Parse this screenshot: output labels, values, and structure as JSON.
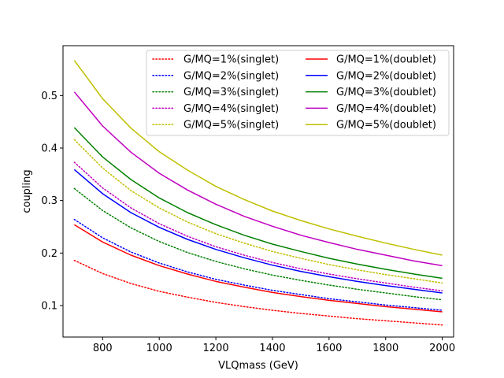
{
  "chart_data": {
    "type": "line",
    "xlabel": "VLQmass (GeV)",
    "ylabel": "coupling",
    "xlim": [
      660,
      2040
    ],
    "ylim": [
      0.04,
      0.595
    ],
    "xticks": [
      800,
      1000,
      1200,
      1400,
      1600,
      1800,
      2000
    ],
    "yticks": [
      0.1,
      0.2,
      0.3,
      0.4,
      0.5
    ],
    "grid": false,
    "legend_placement": "top-right",
    "legend_columns": 2,
    "x": [
      700,
      800,
      900,
      1000,
      1100,
      1200,
      1300,
      1400,
      1500,
      1600,
      1700,
      1800,
      1900,
      2000
    ],
    "series": [
      {
        "name": "G/MQ=1%(singlet)",
        "color": "#ff0000",
        "style": "dotted",
        "values": [
          0.186,
          0.161,
          0.142,
          0.127,
          0.116,
          0.106,
          0.098,
          0.091,
          0.085,
          0.08,
          0.075,
          0.071,
          0.067,
          0.063
        ]
      },
      {
        "name": "G/MQ=2%(singlet)",
        "color": "#0000ff",
        "style": "dotted",
        "values": [
          0.264,
          0.229,
          0.202,
          0.181,
          0.164,
          0.15,
          0.139,
          0.129,
          0.121,
          0.113,
          0.107,
          0.101,
          0.096,
          0.091
        ]
      },
      {
        "name": "G/MQ=3%(singlet)",
        "color": "#008000",
        "style": "dotted",
        "values": [
          0.323,
          0.281,
          0.248,
          0.222,
          0.201,
          0.184,
          0.17,
          0.158,
          0.148,
          0.139,
          0.131,
          0.124,
          0.117,
          0.111
        ]
      },
      {
        "name": "G/MQ=4%(singlet)",
        "color": "#bf00bf",
        "style": "dotted",
        "values": [
          0.373,
          0.324,
          0.286,
          0.256,
          0.232,
          0.212,
          0.196,
          0.182,
          0.17,
          0.16,
          0.151,
          0.143,
          0.135,
          0.128
        ]
      },
      {
        "name": "G/MQ=5%(singlet)",
        "color": "#bfbf00",
        "style": "dotted",
        "values": [
          0.416,
          0.362,
          0.319,
          0.286,
          0.259,
          0.237,
          0.219,
          0.203,
          0.19,
          0.178,
          0.168,
          0.159,
          0.151,
          0.143
        ]
      },
      {
        "name": "G/MQ=1%(doublet)",
        "color": "#ff0000",
        "style": "solid",
        "values": [
          0.254,
          0.221,
          0.196,
          0.176,
          0.16,
          0.146,
          0.135,
          0.125,
          0.117,
          0.11,
          0.104,
          0.098,
          0.093,
          0.088
        ]
      },
      {
        "name": "G/MQ=2%(doublet)",
        "color": "#0000ff",
        "style": "solid",
        "values": [
          0.359,
          0.313,
          0.277,
          0.249,
          0.226,
          0.207,
          0.191,
          0.177,
          0.165,
          0.155,
          0.146,
          0.138,
          0.131,
          0.124
        ]
      },
      {
        "name": "G/MQ=3%(doublet)",
        "color": "#008000",
        "style": "solid",
        "values": [
          0.439,
          0.383,
          0.34,
          0.305,
          0.277,
          0.254,
          0.234,
          0.217,
          0.203,
          0.19,
          0.179,
          0.169,
          0.16,
          0.152
        ]
      },
      {
        "name": "G/MQ=4%(doublet)",
        "color": "#bf00bf",
        "style": "solid",
        "values": [
          0.507,
          0.442,
          0.392,
          0.352,
          0.32,
          0.293,
          0.27,
          0.251,
          0.234,
          0.22,
          0.207,
          0.196,
          0.185,
          0.176
        ]
      },
      {
        "name": "G/MQ=5%(doublet)",
        "color": "#bfbf00",
        "style": "solid",
        "values": [
          0.567,
          0.494,
          0.438,
          0.393,
          0.358,
          0.327,
          0.302,
          0.28,
          0.262,
          0.246,
          0.232,
          0.219,
          0.207,
          0.196
        ]
      }
    ]
  }
}
